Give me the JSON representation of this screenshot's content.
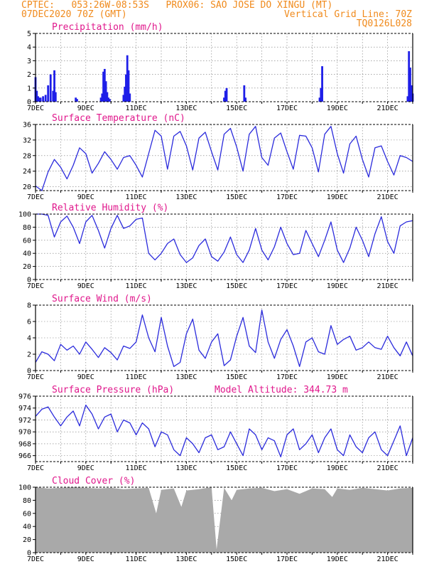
{
  "header": {
    "line1_left": "CPTEC:   053:26W-08:53S   PROX06: SAO JOSE DO XINGU (MT)",
    "line2_left": "07DEC2020 70Z (GMT)",
    "line2_right": "Vertical Grid Line: 70Z",
    "line3_right": "TQ0126L028"
  },
  "colors": {
    "line": "#2b2bdc",
    "bar": "#1f1fe8",
    "title": "#e0188c",
    "header": "#f08a1c",
    "cloud": "#a9a9a9"
  },
  "chart_data": [
    {
      "type": "bar",
      "title": "Precipitation (mm/h)",
      "x_ticks": [
        "7DEC",
        "9DEC",
        "11DEC",
        "13DEC",
        "15DEC",
        "17DEC",
        "19DEC",
        "21DEC"
      ],
      "x_start_label": "7DEC",
      "x": [
        7.0,
        7.05,
        7.1,
        7.15,
        7.2,
        7.3,
        7.4,
        7.5,
        7.6,
        7.7,
        7.75,
        7.8,
        8.6,
        8.65,
        9.6,
        9.65,
        9.7,
        9.75,
        9.8,
        9.85,
        9.9,
        9.95,
        10.5,
        10.55,
        10.6,
        10.65,
        10.7,
        10.75,
        14.5,
        14.55,
        14.6,
        15.3,
        15.35,
        18.3,
        18.35,
        18.4,
        21.8,
        21.85,
        21.9,
        21.95,
        22.0
      ],
      "values": [
        1.8,
        0.8,
        0.4,
        0.3,
        0.3,
        0.4,
        0.5,
        1.2,
        2.0,
        0.8,
        2.3,
        0.7,
        0.3,
        0.2,
        0.3,
        0.6,
        2.2,
        2.4,
        1.5,
        0.7,
        0.3,
        0.2,
        0.5,
        1.1,
        2.0,
        3.4,
        2.3,
        0.6,
        0.3,
        0.8,
        1.0,
        1.2,
        0.3,
        0.3,
        1.0,
        2.6,
        0.4,
        3.7,
        2.5,
        1.2,
        0.6
      ],
      "ylim": [
        0,
        5
      ],
      "y_ticks": [
        0,
        1,
        2,
        3,
        4,
        5
      ]
    },
    {
      "type": "line",
      "title": "Surface Temperature (nC)",
      "x_ticks": [
        "7DEC",
        "9DEC",
        "11DEC",
        "13DEC",
        "15DEC",
        "17DEC",
        "19DEC",
        "21DEC"
      ],
      "x": [
        7.0,
        7.25,
        7.5,
        7.75,
        8.0,
        8.25,
        8.5,
        8.75,
        9.0,
        9.25,
        9.5,
        9.75,
        10.0,
        10.25,
        10.5,
        10.75,
        11.0,
        11.25,
        11.5,
        11.75,
        12.0,
        12.25,
        12.5,
        12.75,
        13.0,
        13.25,
        13.5,
        13.75,
        14.0,
        14.25,
        14.5,
        14.75,
        15.0,
        15.25,
        15.5,
        15.75,
        16.0,
        16.25,
        16.5,
        16.75,
        17.0,
        17.25,
        17.5,
        17.75,
        18.0,
        18.25,
        18.5,
        18.75,
        19.0,
        19.25,
        19.5,
        19.75,
        20.0,
        20.25,
        20.5,
        20.75,
        21.0,
        21.25,
        21.5,
        21.75,
        22.0
      ],
      "values": [
        20.2,
        19.0,
        23.8,
        27.0,
        25.0,
        22.0,
        25.5,
        30.0,
        28.5,
        23.5,
        26.0,
        29.0,
        27.0,
        24.5,
        27.5,
        28.0,
        25.5,
        22.5,
        28.5,
        34.5,
        33.0,
        24.5,
        33.0,
        34.2,
        30.5,
        24.3,
        32.5,
        34.0,
        29.0,
        24.3,
        33.5,
        35.0,
        30.2,
        24.0,
        33.5,
        35.5,
        27.5,
        25.5,
        32.5,
        33.8,
        29.0,
        24.5,
        33.2,
        33.0,
        30.0,
        23.8,
        33.5,
        35.5,
        28.5,
        23.5,
        31.0,
        33.0,
        27.0,
        22.5,
        30.0,
        30.5,
        26.5,
        23.0,
        28.0,
        27.5,
        26.5
      ],
      "ylim": [
        19,
        36
      ],
      "y_ticks": [
        20,
        24,
        28,
        32,
        36
      ]
    },
    {
      "type": "line",
      "title": "Relative Humidity (%)",
      "x_ticks": [
        "7DEC",
        "9DEC",
        "11DEC",
        "13DEC",
        "15DEC",
        "17DEC",
        "19DEC",
        "21DEC"
      ],
      "x": [
        7.0,
        7.25,
        7.5,
        7.75,
        8.0,
        8.25,
        8.5,
        8.75,
        9.0,
        9.25,
        9.5,
        9.75,
        10.0,
        10.25,
        10.5,
        10.75,
        11.0,
        11.25,
        11.5,
        11.75,
        12.0,
        12.25,
        12.5,
        12.75,
        13.0,
        13.25,
        13.5,
        13.75,
        14.0,
        14.25,
        14.5,
        14.75,
        15.0,
        15.25,
        15.5,
        15.75,
        16.0,
        16.25,
        16.5,
        16.75,
        17.0,
        17.25,
        17.5,
        17.75,
        18.0,
        18.25,
        18.5,
        18.75,
        19.0,
        19.25,
        19.5,
        19.75,
        20.0,
        20.25,
        20.5,
        20.75,
        21.0,
        21.25,
        21.5,
        21.75,
        22.0
      ],
      "values": [
        100,
        100,
        98,
        65,
        88,
        97,
        80,
        55,
        88,
        98,
        75,
        48,
        78,
        98,
        78,
        82,
        92,
        94,
        40,
        30,
        40,
        55,
        62,
        38,
        26,
        33,
        52,
        62,
        35,
        28,
        42,
        65,
        38,
        26,
        45,
        78,
        45,
        30,
        50,
        80,
        55,
        38,
        40,
        75,
        55,
        35,
        60,
        88,
        45,
        26,
        48,
        80,
        60,
        35,
        70,
        96,
        58,
        40,
        82,
        88,
        90
      ],
      "ylim": [
        0,
        100
      ],
      "y_ticks": [
        0,
        20,
        40,
        60,
        80,
        100
      ]
    },
    {
      "type": "line",
      "title": "Surface Wind (m/s)",
      "x_ticks": [
        "7DEC",
        "9DEC",
        "11DEC",
        "13DEC",
        "15DEC",
        "17DEC",
        "19DEC",
        "21DEC"
      ],
      "x": [
        7.0,
        7.25,
        7.5,
        7.75,
        8.0,
        8.25,
        8.5,
        8.75,
        9.0,
        9.25,
        9.5,
        9.75,
        10.0,
        10.25,
        10.5,
        10.75,
        11.0,
        11.25,
        11.5,
        11.75,
        12.0,
        12.25,
        12.5,
        12.75,
        13.0,
        13.25,
        13.5,
        13.75,
        14.0,
        14.25,
        14.5,
        14.75,
        15.0,
        15.25,
        15.5,
        15.75,
        16.0,
        16.25,
        16.5,
        16.75,
        17.0,
        17.25,
        17.5,
        17.75,
        18.0,
        18.25,
        18.5,
        18.75,
        19.0,
        19.25,
        19.5,
        19.75,
        20.0,
        20.25,
        20.5,
        20.75,
        21.0,
        21.25,
        21.5,
        21.75,
        22.0
      ],
      "values": [
        1.0,
        2.3,
        2.0,
        1.2,
        3.2,
        2.5,
        3.0,
        2.0,
        3.5,
        2.6,
        1.6,
        2.8,
        2.2,
        1.3,
        3.0,
        2.7,
        3.5,
        6.8,
        4.0,
        2.3,
        6.5,
        3.0,
        0.5,
        1.0,
        4.5,
        6.3,
        2.5,
        1.5,
        3.5,
        4.5,
        0.6,
        1.3,
        4.2,
        6.5,
        3.0,
        2.2,
        7.4,
        3.5,
        1.5,
        3.8,
        5.0,
        3.0,
        0.5,
        3.5,
        4.0,
        2.3,
        2.0,
        5.5,
        3.2,
        3.8,
        4.2,
        2.5,
        2.8,
        3.5,
        2.8,
        2.6,
        4.2,
        2.8,
        1.8,
        3.5,
        1.8
      ],
      "ylim": [
        0,
        8
      ],
      "y_ticks": [
        0,
        2,
        4,
        6,
        8
      ]
    },
    {
      "type": "line",
      "title": "Surface Pressure (hPa)",
      "annotation": "Model Altitude: 344.73 m",
      "x_ticks": [
        "7DEC",
        "9DEC",
        "11DEC",
        "13DEC",
        "15DEC",
        "17DEC",
        "19DEC",
        "21DEC"
      ],
      "x": [
        7.0,
        7.25,
        7.5,
        7.75,
        8.0,
        8.25,
        8.5,
        8.75,
        9.0,
        9.25,
        9.5,
        9.75,
        10.0,
        10.25,
        10.5,
        10.75,
        11.0,
        11.25,
        11.5,
        11.75,
        12.0,
        12.25,
        12.5,
        12.75,
        13.0,
        13.25,
        13.5,
        13.75,
        14.0,
        14.25,
        14.5,
        14.75,
        15.0,
        15.25,
        15.5,
        15.75,
        16.0,
        16.25,
        16.5,
        16.75,
        17.0,
        17.25,
        17.5,
        17.75,
        18.0,
        18.25,
        18.5,
        18.75,
        19.0,
        19.25,
        19.5,
        19.75,
        20.0,
        20.25,
        20.5,
        20.75,
        21.0,
        21.25,
        21.5,
        21.75,
        22.0
      ],
      "values": [
        972.6,
        973.8,
        974.2,
        972.5,
        971.0,
        972.5,
        973.5,
        971.0,
        974.5,
        973.0,
        970.5,
        972.5,
        973.0,
        970.0,
        972.0,
        971.5,
        969.5,
        971.5,
        970.5,
        967.5,
        970.0,
        969.5,
        967.0,
        966.0,
        969.0,
        968.0,
        966.5,
        969.0,
        969.5,
        967.0,
        967.5,
        970.0,
        968.0,
        966.0,
        970.5,
        969.5,
        967.0,
        969.0,
        968.5,
        965.8,
        969.5,
        970.5,
        967.0,
        968.0,
        969.5,
        966.5,
        969.0,
        970.5,
        967.0,
        966.0,
        969.5,
        967.5,
        966.5,
        969.0,
        970.0,
        967.0,
        966.0,
        968.5,
        971.0,
        966.0,
        969.0
      ],
      "ylim": [
        965,
        976
      ],
      "y_ticks": [
        966,
        968,
        970,
        972,
        974,
        976
      ]
    },
    {
      "type": "area",
      "title": "Cloud Cover (%)",
      "x_ticks": [
        "7DEC",
        "9DEC",
        "11DEC",
        "13DEC",
        "15DEC",
        "17DEC",
        "19DEC",
        "21DEC"
      ],
      "x": [
        7.0,
        7.5,
        8.0,
        8.5,
        9.0,
        9.5,
        10.0,
        10.5,
        11.0,
        11.5,
        11.8,
        12.0,
        12.5,
        12.8,
        13.0,
        13.5,
        14.0,
        14.2,
        14.5,
        14.8,
        15.0,
        15.5,
        16.0,
        16.5,
        17.0,
        17.5,
        18.0,
        18.5,
        18.8,
        19.0,
        19.5,
        20.0,
        20.5,
        21.0,
        21.5,
        22.0
      ],
      "values": [
        100,
        98,
        99,
        100,
        99,
        98,
        99,
        97,
        98,
        99,
        60,
        96,
        98,
        70,
        95,
        97,
        100,
        5,
        99,
        80,
        96,
        98,
        99,
        94,
        97,
        90,
        98,
        97,
        85,
        98,
        96,
        99,
        97,
        95,
        98,
        99
      ],
      "ylim": [
        0,
        100
      ],
      "y_ticks": [
        0,
        20,
        40,
        60,
        80,
        100
      ]
    }
  ]
}
